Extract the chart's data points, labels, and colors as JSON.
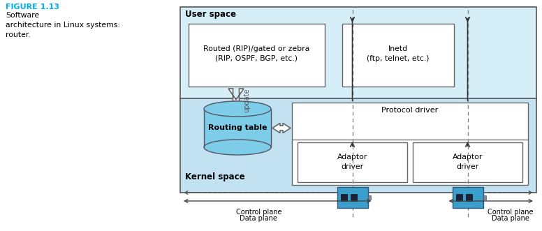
{
  "fig_width": 7.76,
  "fig_height": 3.31,
  "dpi": 100,
  "title_text": "FIGURE 1.13",
  "title_color": "#00AEEF",
  "subtitle_text": "Software\narchitecture in Linux systems:\nrouter.",
  "user_space_label": "User space",
  "kernel_space_label": "Kernel space",
  "routed_box_text": "Routed (RIP)/gated or zebra\n(RIP, OSPF, BGP, etc.)",
  "inetd_box_text": "Inetd\n(ftp, telnet, etc.)",
  "routing_table_text": "Routing table",
  "protocol_driver_text": "Protocol driver",
  "adaptor_driver1_text": "Adaptor\ndriver",
  "adaptor_driver2_text": "Adaptor\ndriver",
  "update_text": "update",
  "control_plane_text": "Control plane",
  "data_plane_text": "Data plane",
  "user_space_bg": "#D6EEF8",
  "kernel_space_bg": "#C2E2F2",
  "white_box_bg": "#FFFFFF",
  "cylinder_top_color": "#7DCDE8",
  "cylinder_body_color": "#7DCDE8",
  "nic_color": "#3B9FCC",
  "nic_dark": "#222244",
  "nic_port": "#888899"
}
